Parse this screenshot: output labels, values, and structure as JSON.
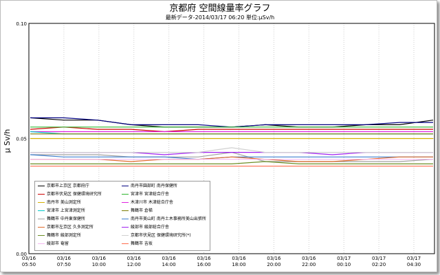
{
  "title": "京都府 空間線量率グラフ",
  "subtitle": "最新データ-2014/03/17 06:20 単位:μSv/h",
  "ylabel": "μ Sv/h",
  "chart_data": {
    "type": "line",
    "title": "京都府 空間線量率グラフ",
    "ylabel": "μ Sv/h",
    "xlabel": "",
    "ylim": [
      0.0,
      0.1
    ],
    "yticks": [
      "0.00",
      "0.05",
      "0.10"
    ],
    "xticks": [
      {
        "date": "03/16",
        "time": "05:50"
      },
      {
        "date": "03/16",
        "time": "07:50"
      },
      {
        "date": "03/16",
        "time": "10:00"
      },
      {
        "date": "03/16",
        "time": "12:00"
      },
      {
        "date": "03/16",
        "time": "14:00"
      },
      {
        "date": "03/16",
        "time": "16:00"
      },
      {
        "date": "03/16",
        "time": "18:00"
      },
      {
        "date": "03/16",
        "time": "20:00"
      },
      {
        "date": "03/16",
        "time": "22:00"
      },
      {
        "date": "03/17",
        "time": "00:10"
      },
      {
        "date": "03/17",
        "time": "02:20"
      },
      {
        "date": "03/17",
        "time": "04:30"
      }
    ],
    "grid": true,
    "legend_position": "bottom-left",
    "series": [
      {
        "name": "京都市上京区 京都府庁",
        "color": "#000000",
        "values": [
          0.059,
          0.058,
          0.058,
          0.056,
          0.055,
          0.055,
          0.055,
          0.056,
          0.055,
          0.055,
          0.056,
          0.056,
          0.058
        ]
      },
      {
        "name": "南丹市園部町 南丹保健所",
        "color": "#000080",
        "values": [
          0.059,
          0.059,
          0.058,
          0.056,
          0.056,
          0.056,
          0.055,
          0.056,
          0.056,
          0.056,
          0.056,
          0.057,
          0.057
        ]
      },
      {
        "name": "京都市伏見区 保健環境研究所",
        "color": "#cc0000",
        "values": [
          0.054,
          0.055,
          0.054,
          0.054,
          0.053,
          0.054,
          0.054,
          0.054,
          0.054,
          0.054,
          0.054,
          0.054,
          0.054
        ]
      },
      {
        "name": "宮津市 宮津総合庁舎",
        "color": "#2db52d",
        "values": [
          0.055,
          0.055,
          0.055,
          0.055,
          0.055,
          0.055,
          0.055,
          0.055,
          0.055,
          0.055,
          0.055,
          0.055,
          0.055
        ]
      },
      {
        "name": "南丹市 美山測定所",
        "color": "#d4b000",
        "values": [
          0.05,
          0.05,
          0.05,
          0.05,
          0.05,
          0.05,
          0.05,
          0.05,
          0.05,
          0.05,
          0.05,
          0.05,
          0.05
        ]
      },
      {
        "name": "木津川市 木津総合庁舎",
        "color": "#e020e0",
        "values": [
          0.053,
          0.053,
          0.053,
          0.053,
          0.053,
          0.053,
          0.053,
          0.053,
          0.053,
          0.053,
          0.053,
          0.053,
          0.053
        ]
      },
      {
        "name": "宮津市 上宮津測定所",
        "color": "#00c8c8",
        "values": [
          0.053,
          0.052,
          0.052,
          0.052,
          0.052,
          0.052,
          0.052,
          0.052,
          0.052,
          0.052,
          0.052,
          0.052,
          0.052
        ]
      },
      {
        "name": "舞鶴市 倉梯",
        "color": "#7a7a00",
        "values": [
          0.052,
          0.052,
          0.052,
          0.052,
          0.052,
          0.052,
          0.052,
          0.052,
          0.052,
          0.052,
          0.052,
          0.052,
          0.052
        ]
      },
      {
        "name": "舞鶴市 中丹東保健所",
        "color": "#a0a0a0",
        "values": [
          0.043,
          0.043,
          0.043,
          0.042,
          0.042,
          0.042,
          0.044,
          0.04,
          0.04,
          0.04,
          0.04,
          0.04,
          0.041
        ]
      },
      {
        "name": "南丹市美山町 南丹土木事務所美山出張所",
        "color": "#3f7fd0",
        "values": [
          0.043,
          0.042,
          0.042,
          0.042,
          0.042,
          0.041,
          0.042,
          0.042,
          0.042,
          0.042,
          0.042,
          0.042,
          0.042
        ]
      },
      {
        "name": "京都市左京区 久多測定所",
        "color": "#e06a2a",
        "values": [
          0.041,
          0.041,
          0.041,
          0.04,
          0.041,
          0.041,
          0.042,
          0.041,
          0.04,
          0.04,
          0.041,
          0.042,
          0.042
        ]
      },
      {
        "name": "綾部市 綾部総合庁舎",
        "color": "#a020f0",
        "values": [
          0.044,
          0.044,
          0.044,
          0.044,
          0.043,
          0.044,
          0.044,
          0.044,
          0.044,
          0.043,
          0.044,
          0.044,
          0.044
        ]
      },
      {
        "name": "舞鶴市 綾部測定所",
        "color": "#6b8e23",
        "values": [
          0.039,
          0.039,
          0.039,
          0.039,
          0.039,
          0.039,
          0.039,
          0.04,
          0.039,
          0.039,
          0.039,
          0.039,
          0.039
        ]
      },
      {
        "name": "京都市伏見区 保健環境研究所(*)",
        "color": "#d0d0d0",
        "values": [
          0.044,
          0.044,
          0.044,
          0.044,
          0.044,
          0.044,
          0.046,
          0.044,
          0.044,
          0.044,
          0.044,
          0.044,
          0.044
        ]
      },
      {
        "name": "綾部市 奄留",
        "color": "#f4b8f0",
        "values": [
          0.041,
          0.041,
          0.041,
          0.041,
          0.041,
          0.041,
          0.041,
          0.041,
          0.041,
          0.041,
          0.041,
          0.041,
          0.041
        ]
      },
      {
        "name": "舞鶴市 吉坂",
        "color": "#ff6a4a",
        "values": [
          0.038,
          0.038,
          0.038,
          0.038,
          0.038,
          0.038,
          0.038,
          0.038,
          0.038,
          0.038,
          0.038,
          0.038,
          0.038
        ]
      }
    ]
  }
}
